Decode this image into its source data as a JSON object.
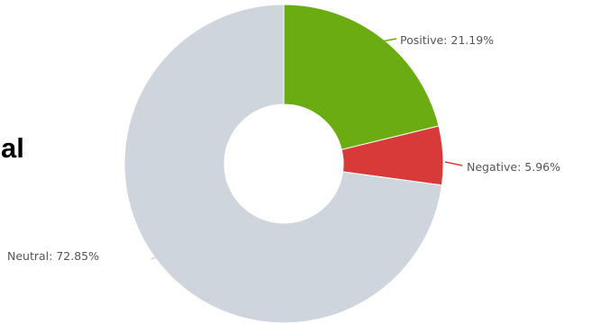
{
  "cut_off_text": "al",
  "chart_data": {
    "type": "pie",
    "donut": true,
    "start_angle_deg": 0,
    "direction": "clockwise",
    "legend": "none",
    "slices": [
      {
        "name": "Positive",
        "value": 21.19,
        "label": "Positive: 21.19%",
        "color": "#6aac11"
      },
      {
        "name": "Negative",
        "value": 5.96,
        "label": "Negative: 5.96%",
        "color": "#d83a3a"
      },
      {
        "name": "Neutral",
        "value": 72.85,
        "label": "Neutral: 72.85%",
        "color": "#ced5dc"
      }
    ]
  }
}
